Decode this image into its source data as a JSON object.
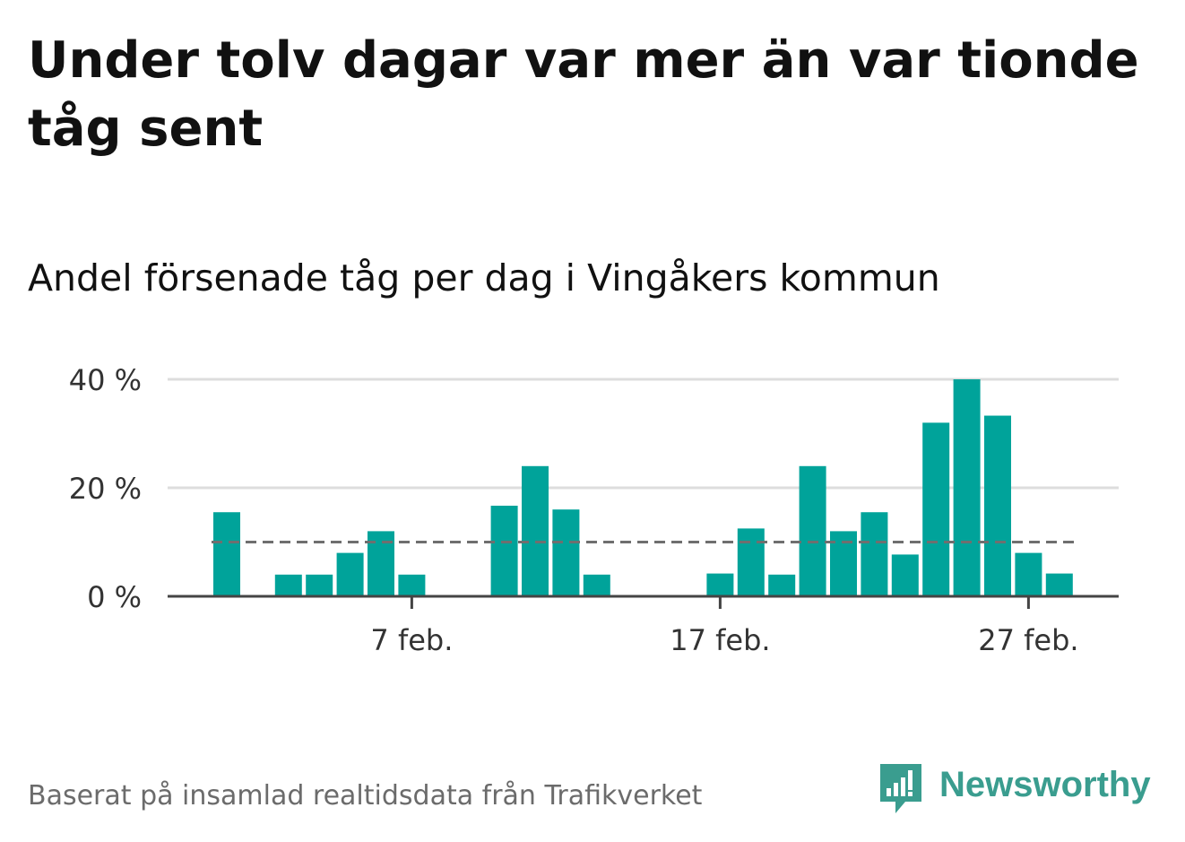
{
  "title": "Under tolv dagar var mer än var tionde tåg sent",
  "subtitle": "Andel försenade tåg per dag i Vingåkers kommun",
  "source": "Baserat på insamlad realtidsdata från Trafikverket",
  "logo": {
    "text": "Newsworthy",
    "icon": "chat-bubble-bar-chart-icon",
    "color": "#3a9d8f"
  },
  "colors": {
    "bar": "#00a39a",
    "reference": "#6f6f6f",
    "grid": "#dddddd",
    "axis": "#444444"
  },
  "chart_data": {
    "type": "bar",
    "title": "Andel försenade tåg per dag i Vingåkers kommun",
    "xlabel": "",
    "ylabel": "",
    "x": [
      "1 feb.",
      "2 feb.",
      "3 feb.",
      "4 feb.",
      "5 feb.",
      "6 feb.",
      "7 feb.",
      "8 feb.",
      "9 feb.",
      "10 feb.",
      "11 feb.",
      "12 feb.",
      "13 feb.",
      "14 feb.",
      "15 feb.",
      "16 feb.",
      "17 feb.",
      "18 feb.",
      "19 feb.",
      "20 feb.",
      "21 feb.",
      "22 feb.",
      "23 feb.",
      "24 feb.",
      "25 feb.",
      "26 feb.",
      "27 feb.",
      "28 feb."
    ],
    "values": [
      15.5,
      0,
      4,
      4,
      8,
      12,
      4,
      0,
      0,
      16.7,
      24,
      16,
      4,
      0,
      0,
      0,
      4.2,
      12.5,
      4,
      24,
      12,
      15.5,
      7.7,
      32,
      40,
      33.3,
      8,
      4.2
    ],
    "reference_line": {
      "value": 10,
      "style": "dashed"
    },
    "ylim": [
      0,
      40
    ],
    "yticks": [
      0,
      20,
      40
    ],
    "ytick_labels": [
      "0 %",
      "20 %",
      "40 %"
    ],
    "xticks": [
      "7 feb.",
      "17 feb.",
      "27 feb."
    ],
    "grid": true,
    "legend": "none"
  }
}
